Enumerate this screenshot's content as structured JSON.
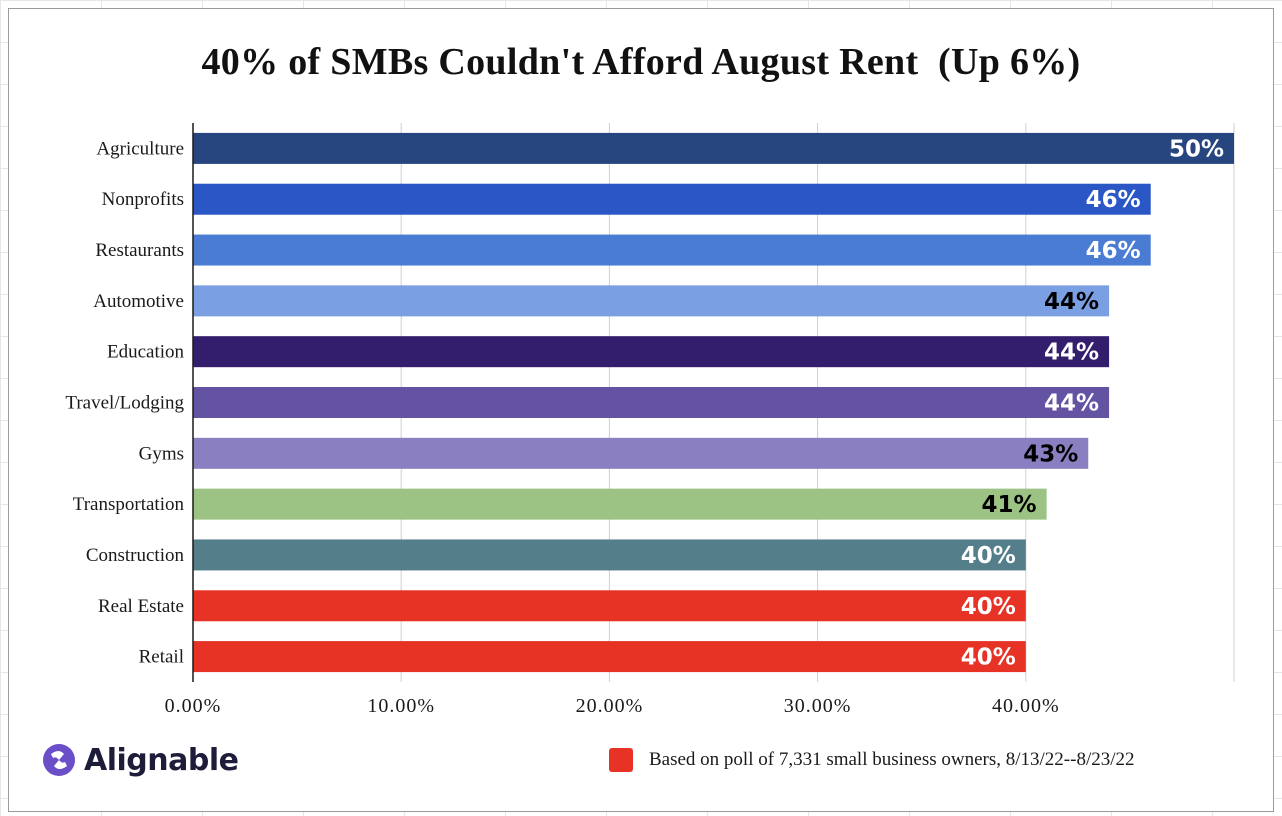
{
  "chart_data": {
    "type": "bar",
    "orientation": "horizontal",
    "title": "40% of SMBs Couldn't Afford August Rent  (Up 6%)",
    "categories": [
      "Agriculture",
      "Nonprofits",
      "Restaurants",
      "Automotive",
      "Education",
      "Travel/Lodging",
      "Gyms",
      "Transportation",
      "Construction",
      "Real Estate",
      "Retail"
    ],
    "values": [
      50,
      46,
      46,
      44,
      44,
      44,
      43,
      41,
      40,
      40,
      40
    ],
    "data_labels": [
      "50%",
      "46%",
      "46%",
      "44%",
      "44%",
      "44%",
      "43%",
      "41%",
      "40%",
      "40%",
      "40%"
    ],
    "bar_colors": [
      "#27457f",
      "#2a57c5",
      "#4a7cd4",
      "#7a9fe3",
      "#321e6c",
      "#6452a3",
      "#8a80c1",
      "#9dc384",
      "#537e8a",
      "#e63326",
      "#e63326"
    ],
    "label_colors": [
      "#ffffff",
      "#ffffff",
      "#ffffff",
      "#000000",
      "#ffffff",
      "#ffffff",
      "#000000",
      "#000000",
      "#ffffff",
      "#ffffff",
      "#ffffff"
    ],
    "xlim": [
      0,
      50
    ],
    "x_ticks": [
      0,
      10,
      20,
      30,
      40
    ],
    "x_tick_labels": [
      "0.00%",
      "10.00%",
      "20.00%",
      "30.00%",
      "40.00%"
    ],
    "grid": true,
    "legend": {
      "position": "bottom-right",
      "color": "#e63326",
      "text": "Based on poll of 7,331 small business owners, 8/13/22--8/23/22"
    }
  },
  "branding": {
    "logo_text": "Alignable",
    "logo_icon": "alignable-logo-icon",
    "logo_color": "#6b4fc9"
  }
}
